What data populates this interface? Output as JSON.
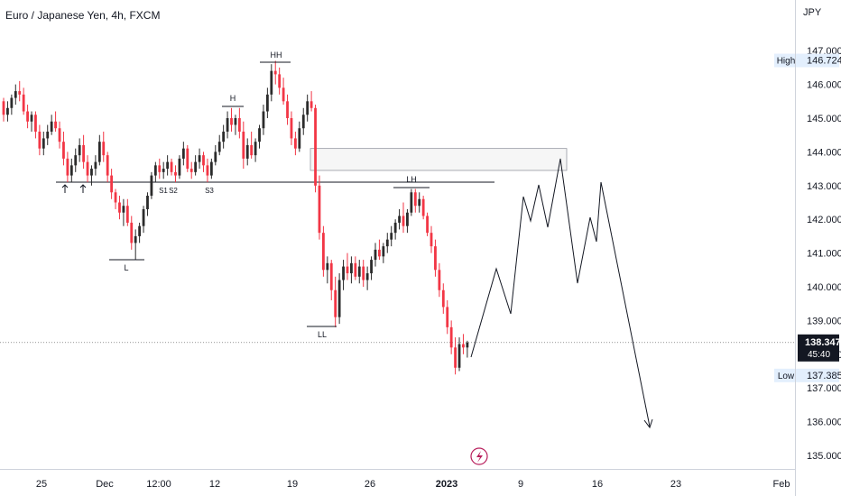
{
  "header": {
    "title": "Euro / Japanese Yen, 4h, FXCM",
    "currency": "JPY"
  },
  "colors": {
    "up": "#2b2b2b",
    "down": "#f23645",
    "line": "#131722",
    "grid": "#e0e3eb",
    "label_bg": "#e3effd",
    "price_tag": "#131722"
  },
  "chart_data": {
    "type": "candlestick",
    "ylim": [
      134.7,
      147.2
    ],
    "y_ticks": [
      "135.000",
      "136.000",
      "137.000",
      "138.000",
      "139.000",
      "140.000",
      "141.000",
      "142.000",
      "143.000",
      "144.000",
      "145.000",
      "146.000",
      "147.000"
    ],
    "x_ticks": [
      "25",
      "Dec",
      "12:00",
      "12",
      "19",
      "26",
      "2023",
      "9",
      "16",
      "23",
      "Feb"
    ],
    "high": {
      "label": "High",
      "value": "146.724"
    },
    "low": {
      "label": "Low",
      "value": "137.385"
    },
    "last": {
      "price": "138.347",
      "countdown": "45:40"
    },
    "support_level": 143.1,
    "annotations": [
      "HH",
      "H",
      "L",
      "LL",
      "LH",
      "S1",
      "S2",
      "S3"
    ],
    "zone": {
      "top": 144.1,
      "bottom": 143.45
    },
    "candles": [
      [
        145.5,
        145.6,
        144.9,
        145.1
      ],
      [
        145.1,
        145.5,
        144.9,
        145.3
      ],
      [
        145.3,
        145.7,
        145.1,
        145.6
      ],
      [
        145.6,
        146.0,
        145.4,
        145.8
      ],
      [
        145.8,
        146.1,
        145.5,
        145.7
      ],
      [
        145.7,
        145.9,
        145.1,
        145.2
      ],
      [
        145.2,
        145.4,
        144.7,
        144.9
      ],
      [
        144.9,
        145.2,
        144.6,
        145.1
      ],
      [
        145.1,
        145.2,
        144.4,
        144.6
      ],
      [
        144.6,
        144.8,
        143.9,
        144.1
      ],
      [
        144.1,
        144.6,
        143.9,
        144.4
      ],
      [
        144.4,
        144.8,
        144.2,
        144.6
      ],
      [
        144.6,
        145.1,
        144.5,
        144.9
      ],
      [
        144.9,
        145.2,
        144.6,
        144.7
      ],
      [
        144.7,
        144.9,
        144.1,
        144.3
      ],
      [
        144.3,
        144.6,
        143.6,
        143.8
      ],
      [
        143.8,
        144.0,
        143.1,
        143.3
      ],
      [
        143.3,
        143.8,
        143.1,
        143.6
      ],
      [
        143.6,
        144.1,
        143.4,
        143.9
      ],
      [
        143.9,
        144.4,
        143.7,
        144.2
      ],
      [
        144.2,
        144.5,
        143.5,
        143.7
      ],
      [
        143.7,
        143.9,
        143.1,
        143.3
      ],
      [
        143.3,
        143.6,
        143.0,
        143.5
      ],
      [
        143.5,
        143.9,
        143.3,
        143.7
      ],
      [
        143.7,
        144.5,
        143.6,
        144.3
      ],
      [
        144.3,
        144.6,
        143.7,
        143.9
      ],
      [
        143.9,
        144.0,
        143.1,
        143.3
      ],
      [
        143.3,
        143.5,
        142.6,
        142.8
      ],
      [
        142.8,
        142.9,
        142.3,
        142.5
      ],
      [
        142.5,
        142.7,
        142.0,
        142.2
      ],
      [
        142.2,
        142.6,
        141.8,
        142.4
      ],
      [
        142.4,
        142.6,
        141.8,
        141.9
      ],
      [
        141.9,
        142.1,
        141.1,
        141.3
      ],
      [
        141.3,
        141.7,
        140.8,
        141.5
      ],
      [
        141.5,
        141.9,
        141.3,
        141.8
      ],
      [
        141.8,
        142.4,
        141.6,
        142.3
      ],
      [
        142.3,
        142.8,
        142.1,
        142.7
      ],
      [
        142.7,
        143.4,
        142.6,
        143.3
      ],
      [
        143.3,
        143.7,
        143.1,
        143.6
      ],
      [
        143.6,
        143.8,
        143.2,
        143.4
      ],
      [
        143.4,
        143.7,
        143.2,
        143.5
      ],
      [
        143.5,
        143.9,
        143.3,
        143.7
      ],
      [
        143.7,
        143.8,
        143.3,
        143.4
      ],
      [
        143.4,
        143.6,
        143.1,
        143.3
      ],
      [
        143.3,
        143.9,
        143.2,
        143.8
      ],
      [
        143.8,
        144.3,
        143.6,
        144.1
      ],
      [
        144.1,
        144.2,
        143.4,
        143.5
      ],
      [
        143.5,
        143.7,
        143.2,
        143.4
      ],
      [
        143.4,
        143.9,
        143.3,
        143.7
      ],
      [
        143.7,
        144.1,
        143.5,
        143.9
      ],
      [
        143.9,
        144.0,
        143.4,
        143.6
      ],
      [
        143.6,
        143.8,
        143.1,
        143.3
      ],
      [
        143.3,
        143.8,
        143.2,
        143.7
      ],
      [
        143.7,
        144.2,
        143.6,
        144.0
      ],
      [
        144.0,
        144.5,
        143.9,
        144.3
      ],
      [
        144.3,
        144.8,
        144.1,
        144.6
      ],
      [
        144.6,
        145.2,
        144.4,
        145.0
      ],
      [
        145.0,
        145.3,
        144.6,
        144.8
      ],
      [
        144.8,
        145.1,
        144.5,
        145.0
      ],
      [
        145.0,
        145.3,
        144.4,
        144.6
      ],
      [
        144.6,
        144.9,
        143.5,
        143.8
      ],
      [
        143.8,
        144.4,
        143.6,
        144.2
      ],
      [
        144.2,
        144.6,
        143.8,
        143.9
      ],
      [
        143.9,
        144.4,
        143.7,
        144.3
      ],
      [
        144.3,
        144.8,
        144.1,
        144.7
      ],
      [
        144.7,
        145.4,
        144.5,
        145.2
      ],
      [
        145.2,
        145.9,
        145.0,
        145.7
      ],
      [
        145.7,
        146.6,
        145.5,
        146.4
      ],
      [
        146.4,
        146.7,
        146.0,
        146.3
      ],
      [
        146.3,
        146.5,
        145.7,
        145.9
      ],
      [
        145.9,
        146.2,
        145.4,
        145.5
      ],
      [
        145.5,
        145.7,
        144.8,
        145.0
      ],
      [
        145.0,
        145.2,
        144.2,
        144.4
      ],
      [
        144.4,
        144.6,
        143.9,
        144.1
      ],
      [
        144.1,
        144.9,
        144.0,
        144.7
      ],
      [
        144.7,
        145.3,
        144.5,
        145.1
      ],
      [
        145.1,
        145.7,
        144.9,
        145.5
      ],
      [
        145.5,
        145.8,
        145.2,
        145.3
      ],
      [
        145.3,
        145.4,
        142.8,
        143.0
      ],
      [
        143.0,
        143.3,
        141.4,
        141.6
      ],
      [
        141.6,
        141.8,
        140.3,
        140.5
      ],
      [
        140.5,
        140.9,
        140.1,
        140.7
      ],
      [
        140.7,
        140.8,
        139.6,
        139.9
      ],
      [
        139.9,
        140.3,
        138.8,
        139.1
      ],
      [
        139.1,
        140.4,
        138.9,
        140.2
      ],
      [
        140.2,
        140.8,
        139.9,
        140.6
      ],
      [
        140.6,
        141.0,
        140.2,
        140.4
      ],
      [
        140.4,
        140.9,
        140.1,
        140.7
      ],
      [
        140.7,
        140.9,
        140.2,
        140.3
      ],
      [
        140.3,
        140.8,
        140.1,
        140.6
      ],
      [
        140.6,
        140.8,
        140.0,
        140.2
      ],
      [
        140.2,
        140.6,
        139.9,
        140.4
      ],
      [
        140.4,
        140.9,
        140.2,
        140.8
      ],
      [
        140.8,
        141.3,
        140.6,
        141.1
      ],
      [
        141.1,
        141.4,
        140.8,
        140.9
      ],
      [
        140.9,
        141.3,
        140.7,
        141.2
      ],
      [
        141.2,
        141.6,
        141.0,
        141.4
      ],
      [
        141.4,
        141.8,
        141.2,
        141.6
      ],
      [
        141.6,
        142.0,
        141.4,
        141.9
      ],
      [
        141.9,
        142.3,
        141.7,
        142.1
      ],
      [
        142.1,
        142.5,
        141.6,
        141.8
      ],
      [
        141.8,
        142.3,
        141.6,
        142.2
      ],
      [
        142.2,
        142.9,
        142.1,
        142.8
      ],
      [
        142.8,
        142.9,
        142.2,
        142.4
      ],
      [
        142.4,
        142.8,
        142.2,
        142.6
      ],
      [
        142.6,
        142.7,
        142.0,
        142.1
      ],
      [
        142.1,
        142.2,
        141.5,
        141.6
      ],
      [
        141.6,
        141.8,
        141.0,
        141.2
      ],
      [
        141.2,
        141.4,
        140.3,
        140.5
      ],
      [
        140.5,
        140.7,
        139.7,
        139.9
      ],
      [
        139.9,
        140.1,
        139.2,
        139.4
      ],
      [
        139.4,
        139.6,
        138.6,
        138.8
      ],
      [
        138.8,
        139.0,
        138.0,
        138.2
      ],
      [
        138.2,
        138.5,
        137.4,
        137.6
      ],
      [
        137.6,
        138.5,
        137.5,
        138.3
      ],
      [
        138.3,
        138.6,
        138.0,
        138.2
      ],
      [
        138.2,
        138.4,
        137.9,
        138.347
      ]
    ]
  }
}
